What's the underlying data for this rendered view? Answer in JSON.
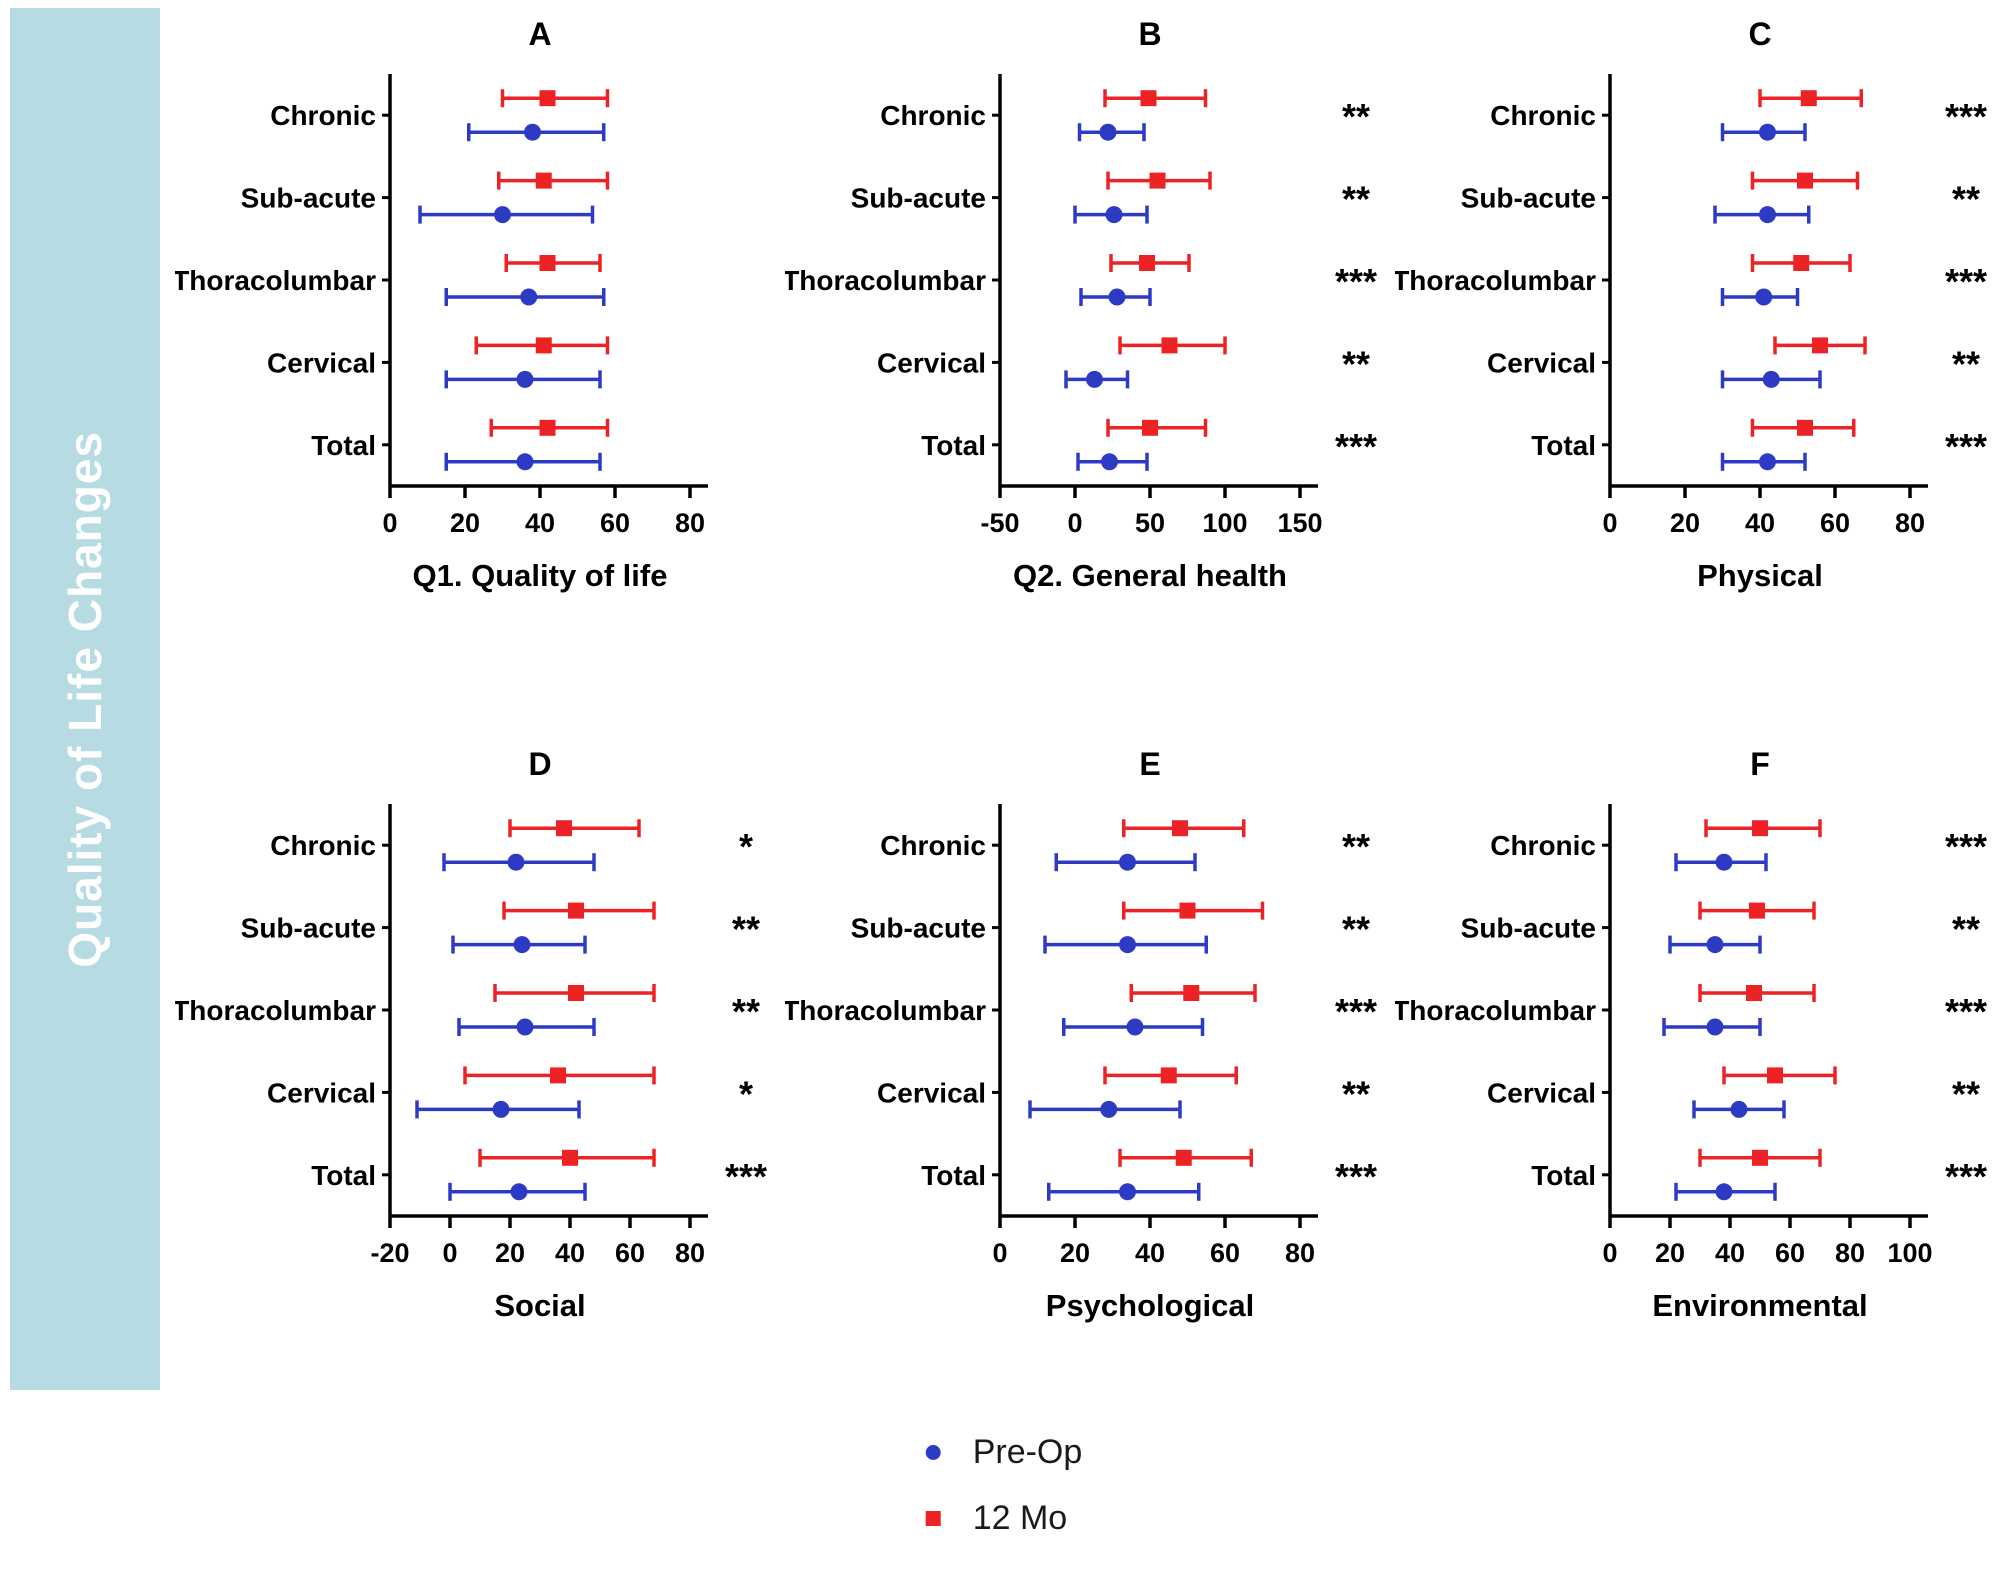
{
  "figure": {
    "side_label": "Quality of Life Changes",
    "band_color": "#b7dbe2",
    "axis_color": "#000000"
  },
  "legend": [
    {
      "label": "Pre-Op",
      "marker": "circle",
      "color": "#2d3bc4"
    },
    {
      "label": "12 Mo",
      "marker": "square",
      "color": "#ed2224"
    }
  ],
  "chart_data": [
    {
      "panel": "A",
      "type": "scatter",
      "title": "A",
      "xlabel": "Q1. Quality of life",
      "xlim": [
        0,
        80
      ],
      "xticks": [
        0,
        20,
        40,
        60,
        80
      ],
      "grid": false,
      "legend_position": "none",
      "categories": [
        "Chronic",
        "Sub-acute",
        "Thoracolumbar",
        "Cervical",
        "Total"
      ],
      "significance": [
        "",
        "",
        "",
        "",
        ""
      ],
      "series": [
        {
          "name": "12 Mo",
          "marker": "square",
          "color": "#ed2224",
          "mean": [
            42,
            41,
            42,
            41,
            42
          ],
          "low": [
            30,
            29,
            31,
            23,
            27
          ],
          "high": [
            58,
            58,
            56,
            58,
            58
          ]
        },
        {
          "name": "Pre-Op",
          "marker": "circle",
          "color": "#2d3bc4",
          "mean": [
            38,
            30,
            37,
            36,
            36
          ],
          "low": [
            21,
            8,
            15,
            15,
            15
          ],
          "high": [
            57,
            54,
            57,
            56,
            56
          ]
        }
      ]
    },
    {
      "panel": "B",
      "type": "scatter",
      "title": "B",
      "xlabel": "Q2. General health",
      "xlim": [
        -50,
        150
      ],
      "xticks": [
        -50,
        0,
        50,
        100,
        150
      ],
      "grid": false,
      "legend_position": "none",
      "categories": [
        "Chronic",
        "Sub-acute",
        "Thoracolumbar",
        "Cervical",
        "Total"
      ],
      "significance": [
        "**",
        "**",
        "***",
        "**",
        "***"
      ],
      "series": [
        {
          "name": "12 Mo",
          "marker": "square",
          "color": "#ed2224",
          "mean": [
            49,
            55,
            48,
            63,
            50
          ],
          "low": [
            20,
            22,
            24,
            30,
            22
          ],
          "high": [
            87,
            90,
            76,
            100,
            87
          ]
        },
        {
          "name": "Pre-Op",
          "marker": "circle",
          "color": "#2d3bc4",
          "mean": [
            22,
            26,
            28,
            13,
            23
          ],
          "low": [
            3,
            0,
            4,
            -6,
            2
          ],
          "high": [
            46,
            48,
            50,
            35,
            48
          ]
        }
      ]
    },
    {
      "panel": "C",
      "type": "scatter",
      "title": "C",
      "xlabel": "Physical",
      "xlim": [
        0,
        80
      ],
      "xticks": [
        0,
        20,
        40,
        60,
        80
      ],
      "grid": false,
      "legend_position": "none",
      "categories": [
        "Chronic",
        "Sub-acute",
        "Thoracolumbar",
        "Cervical",
        "Total"
      ],
      "significance": [
        "***",
        "**",
        "***",
        "**",
        "***"
      ],
      "series": [
        {
          "name": "12 Mo",
          "marker": "square",
          "color": "#ed2224",
          "mean": [
            53,
            52,
            51,
            56,
            52
          ],
          "low": [
            40,
            38,
            38,
            44,
            38
          ],
          "high": [
            67,
            66,
            64,
            68,
            65
          ]
        },
        {
          "name": "Pre-Op",
          "marker": "circle",
          "color": "#2d3bc4",
          "mean": [
            42,
            42,
            41,
            43,
            42
          ],
          "low": [
            30,
            28,
            30,
            30,
            30
          ],
          "high": [
            52,
            53,
            50,
            56,
            52
          ]
        }
      ]
    },
    {
      "panel": "D",
      "type": "scatter",
      "title": "D",
      "xlabel": "Social",
      "xlim": [
        -20,
        80
      ],
      "xticks": [
        -20,
        0,
        20,
        40,
        60,
        80
      ],
      "grid": false,
      "legend_position": "none",
      "categories": [
        "Chronic",
        "Sub-acute",
        "Thoracolumbar",
        "Cervical",
        "Total"
      ],
      "significance": [
        "*",
        "**",
        "**",
        "*",
        "***"
      ],
      "series": [
        {
          "name": "12 Mo",
          "marker": "square",
          "color": "#ed2224",
          "mean": [
            38,
            42,
            42,
            36,
            40
          ],
          "low": [
            20,
            18,
            15,
            5,
            10
          ],
          "high": [
            63,
            68,
            68,
            68,
            68
          ]
        },
        {
          "name": "Pre-Op",
          "marker": "circle",
          "color": "#2d3bc4",
          "mean": [
            22,
            24,
            25,
            17,
            23
          ],
          "low": [
            -2,
            1,
            3,
            -11,
            0
          ],
          "high": [
            48,
            45,
            48,
            43,
            45
          ]
        }
      ]
    },
    {
      "panel": "E",
      "type": "scatter",
      "title": "E",
      "xlabel": "Psychological",
      "xlim": [
        0,
        80
      ],
      "xticks": [
        0,
        20,
        40,
        60,
        80
      ],
      "grid": false,
      "legend_position": "none",
      "categories": [
        "Chronic",
        "Sub-acute",
        "Thoracolumbar",
        "Cervical",
        "Total"
      ],
      "significance": [
        "**",
        "**",
        "***",
        "**",
        "***"
      ],
      "series": [
        {
          "name": "12 Mo",
          "marker": "square",
          "color": "#ed2224",
          "mean": [
            48,
            50,
            51,
            45,
            49
          ],
          "low": [
            33,
            33,
            35,
            28,
            32
          ],
          "high": [
            65,
            70,
            68,
            63,
            67
          ]
        },
        {
          "name": "Pre-Op",
          "marker": "circle",
          "color": "#2d3bc4",
          "mean": [
            34,
            34,
            36,
            29,
            34
          ],
          "low": [
            15,
            12,
            17,
            8,
            13
          ],
          "high": [
            52,
            55,
            54,
            48,
            53
          ]
        }
      ]
    },
    {
      "panel": "F",
      "type": "scatter",
      "title": "F",
      "xlabel": "Environmental",
      "xlim": [
        0,
        100
      ],
      "xticks": [
        0,
        20,
        40,
        60,
        80,
        100
      ],
      "grid": false,
      "legend_position": "none",
      "categories": [
        "Chronic",
        "Sub-acute",
        "Thoracolumbar",
        "Cervical",
        "Total"
      ],
      "significance": [
        "***",
        "**",
        "***",
        "**",
        "***"
      ],
      "series": [
        {
          "name": "12 Mo",
          "marker": "square",
          "color": "#ed2224",
          "mean": [
            50,
            49,
            48,
            55,
            50
          ],
          "low": [
            32,
            30,
            30,
            38,
            30
          ],
          "high": [
            70,
            68,
            68,
            75,
            70
          ]
        },
        {
          "name": "Pre-Op",
          "marker": "circle",
          "color": "#2d3bc4",
          "mean": [
            38,
            35,
            35,
            43,
            38
          ],
          "low": [
            22,
            20,
            18,
            28,
            22
          ],
          "high": [
            52,
            50,
            50,
            58,
            55
          ]
        }
      ]
    }
  ]
}
